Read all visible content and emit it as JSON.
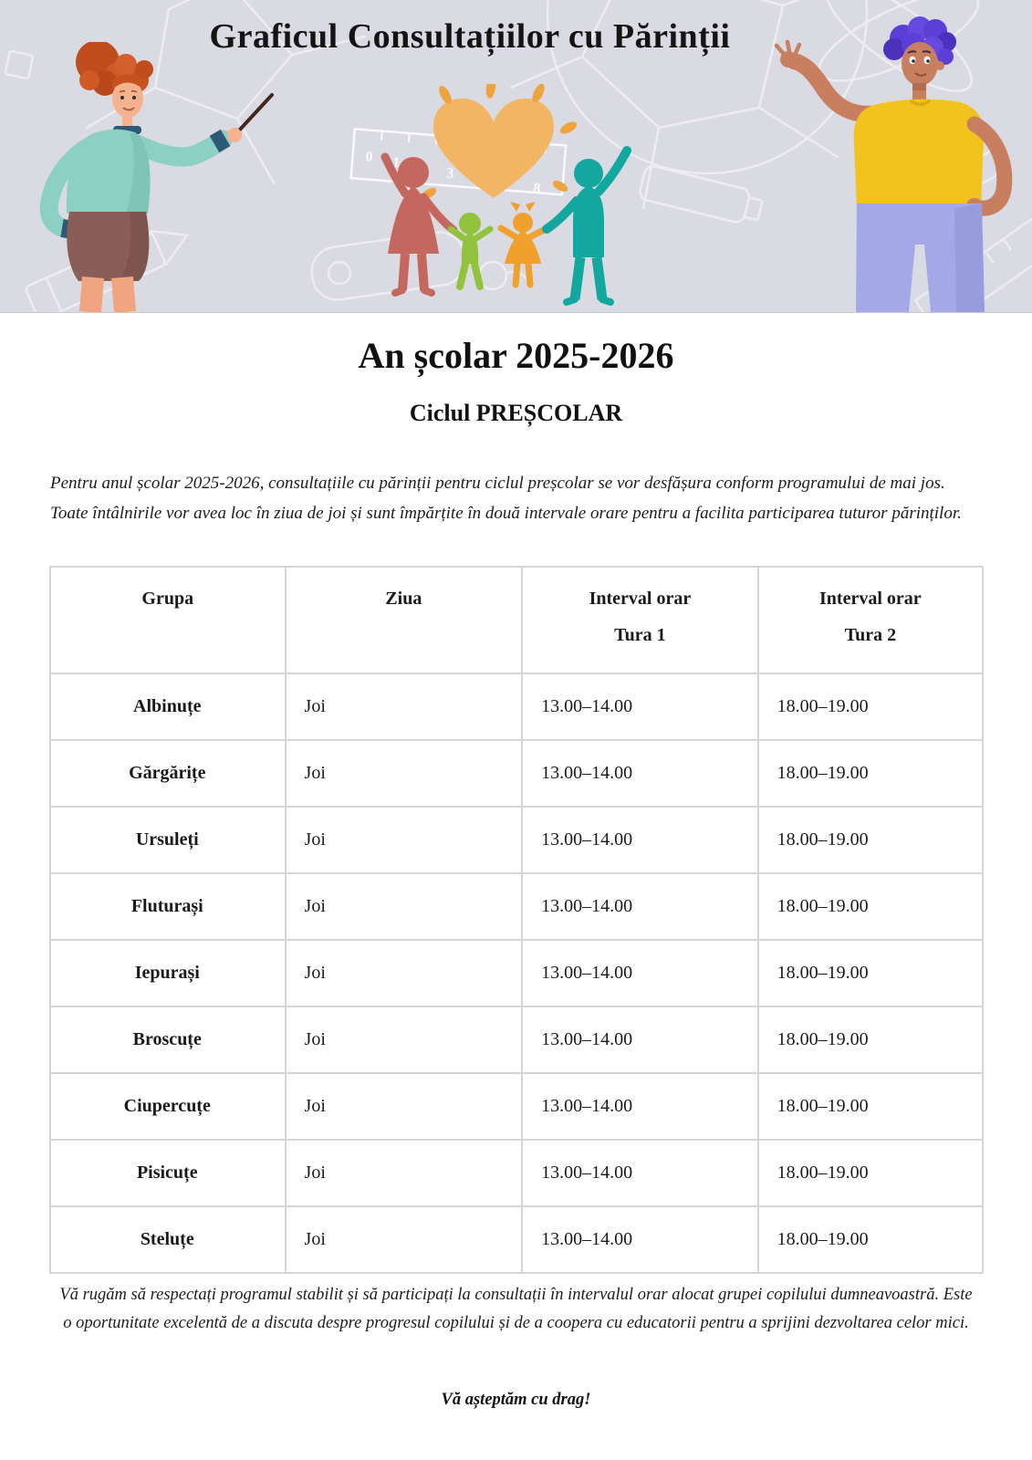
{
  "hero": {
    "title": "Graficul Consultațiilor cu Părinții",
    "background": "#dadae3"
  },
  "document": {
    "year_title": "An școlar 2025-2026",
    "cycle_title": "Ciclul PREȘCOLAR",
    "intro": "Pentru anul școlar 2025-2026, consultațiile cu părinții pentru ciclul preșcolar se vor desfășura conform programului de mai jos. Toate întâlnirile vor avea loc în ziua de joi și sunt împărțite în două intervale orare pentru a facilita participarea tuturor părinților."
  },
  "table": {
    "headers": [
      {
        "line1": "Grupa",
        "line2": ""
      },
      {
        "line1": "Ziua",
        "line2": ""
      },
      {
        "line1": "Interval orar",
        "line2": "Tura 1"
      },
      {
        "line1": "Interval orar",
        "line2": "Tura 2"
      }
    ],
    "rows": [
      {
        "grupa": "Albinuțe",
        "ziua": "Joi",
        "tura1": "13.00–14.00",
        "tura2": "18.00–19.00"
      },
      {
        "grupa": "Gărgărițe",
        "ziua": "Joi",
        "tura1": "13.00–14.00",
        "tura2": "18.00–19.00"
      },
      {
        "grupa": "Ursuleți",
        "ziua": "Joi",
        "tura1": "13.00–14.00",
        "tura2": "18.00–19.00"
      },
      {
        "grupa": "Fluturași",
        "ziua": "Joi",
        "tura1": "13.00–14.00",
        "tura2": "18.00–19.00"
      },
      {
        "grupa": "Iepurași",
        "ziua": "Joi",
        "tura1": "13.00–14.00",
        "tura2": "18.00–19.00"
      },
      {
        "grupa": "Broscuțe",
        "ziua": "Joi",
        "tura1": "13.00–14.00",
        "tura2": "18.00–19.00"
      },
      {
        "grupa": "Ciupercuțe",
        "ziua": "Joi",
        "tura1": "13.00–14.00",
        "tura2": "18.00–19.00"
      },
      {
        "grupa": "Pisicuțe",
        "ziua": "Joi",
        "tura1": "13.00–14.00",
        "tura2": "18.00–19.00"
      },
      {
        "grupa": "Steluțe",
        "ziua": "Joi",
        "tura1": "13.00–14.00",
        "tura2": "18.00–19.00"
      }
    ]
  },
  "footer": {
    "note": "Vă rugăm să respectați programul stabilit și să participați la consultații în intervalul orar alocat grupei copilului dumneavoastră. Este o oportunitate excelentă de a discuta despre progresul copilului și de a coopera cu educatorii pentru a sprijini dezvoltarea celor mici.",
    "closing": "Vă așteptăm cu drag!"
  },
  "colors": {
    "hero_background": "#dadae3",
    "table_border": "#d6d6d6",
    "text": "#1d1d1d",
    "heart": "#f2b564",
    "heart_rays": "#eea43c",
    "family_mother": "#c4675e",
    "family_boy": "#92c33e",
    "family_girl": "#f0a02c",
    "family_father": "#12a8a0",
    "teacher_hair": "#c8521f",
    "teacher_sweater": "#8ccfc5",
    "teacher_cuffs": "#2c5a74",
    "teacher_skirt": "#8a5e57",
    "man_hair": "#5b3fd6",
    "man_shirt": "#f2c31c",
    "man_pants": "#a5a8e6"
  }
}
